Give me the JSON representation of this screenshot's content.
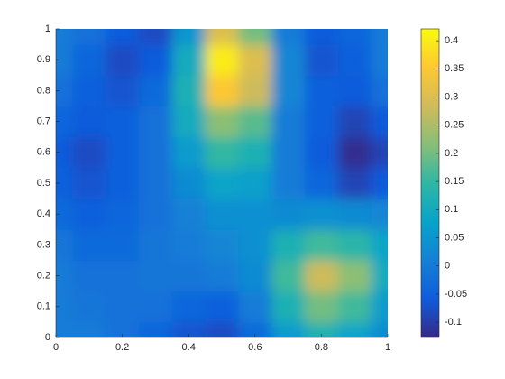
{
  "chart_data": {
    "type": "heatmap",
    "x": [
      0,
      0.1,
      0.2,
      0.3,
      0.4,
      0.5,
      0.6,
      0.7,
      0.8,
      0.9,
      1
    ],
    "y": [
      0,
      0.1,
      0.2,
      0.3,
      0.4,
      0.5,
      0.6,
      0.7,
      0.8,
      0.9,
      1
    ],
    "z": [
      [
        0.0,
        0.0,
        -0.02,
        -0.04,
        -0.07,
        -0.08,
        -0.03,
        0.06,
        0.12,
        0.08,
        0.03
      ],
      [
        0.0,
        -0.01,
        -0.02,
        -0.02,
        -0.04,
        -0.05,
        0.0,
        0.12,
        0.2,
        0.16,
        0.06
      ],
      [
        0.0,
        -0.02,
        -0.02,
        -0.01,
        -0.01,
        0.0,
        0.03,
        0.16,
        0.28,
        0.22,
        0.1
      ],
      [
        -0.01,
        -0.03,
        -0.03,
        -0.01,
        0.0,
        0.02,
        0.04,
        0.12,
        0.16,
        0.14,
        0.08
      ],
      [
        -0.03,
        -0.05,
        -0.04,
        -0.02,
        0.01,
        0.04,
        0.04,
        0.03,
        0.04,
        0.03,
        0.02
      ],
      [
        -0.05,
        -0.07,
        -0.05,
        -0.02,
        0.03,
        0.08,
        0.07,
        0.0,
        -0.04,
        -0.09,
        -0.06
      ],
      [
        -0.06,
        -0.08,
        -0.05,
        -0.02,
        0.06,
        0.15,
        0.12,
        0.0,
        -0.06,
        -0.12,
        -0.09
      ],
      [
        -0.04,
        -0.06,
        -0.05,
        -0.02,
        0.1,
        0.22,
        0.18,
        0.0,
        -0.05,
        -0.09,
        -0.06
      ],
      [
        -0.02,
        -0.05,
        -0.07,
        -0.03,
        0.12,
        0.35,
        0.28,
        0.02,
        -0.05,
        -0.06,
        -0.02
      ],
      [
        0.0,
        -0.04,
        -0.08,
        -0.06,
        0.1,
        0.4,
        0.3,
        0.02,
        -0.07,
        -0.05,
        0.0
      ],
      [
        0.0,
        -0.02,
        -0.06,
        -0.08,
        0.05,
        0.3,
        0.2,
        0.0,
        -0.06,
        -0.04,
        0.0
      ]
    ],
    "xlim": [
      0,
      1
    ],
    "xticks": [
      0,
      0.2,
      0.4,
      0.6,
      0.8,
      1
    ],
    "ylim": [
      0,
      1
    ],
    "yticks": [
      0,
      0.1,
      0.2,
      0.3,
      0.4,
      0.5,
      0.6,
      0.7,
      0.8,
      0.9,
      1
    ],
    "clim": [
      -0.127,
      0.421
    ],
    "colorbar_ticks": [
      -0.1,
      -0.05,
      0,
      0.05,
      0.1,
      0.15,
      0.2,
      0.25,
      0.3,
      0.35,
      0.4
    ],
    "colormap": [
      "#352a87",
      "#0f5cdd",
      "#1481d6",
      "#06a4ca",
      "#2eb7a4",
      "#87bf77",
      "#d1bb59",
      "#fec832",
      "#f9fb0e"
    ]
  }
}
